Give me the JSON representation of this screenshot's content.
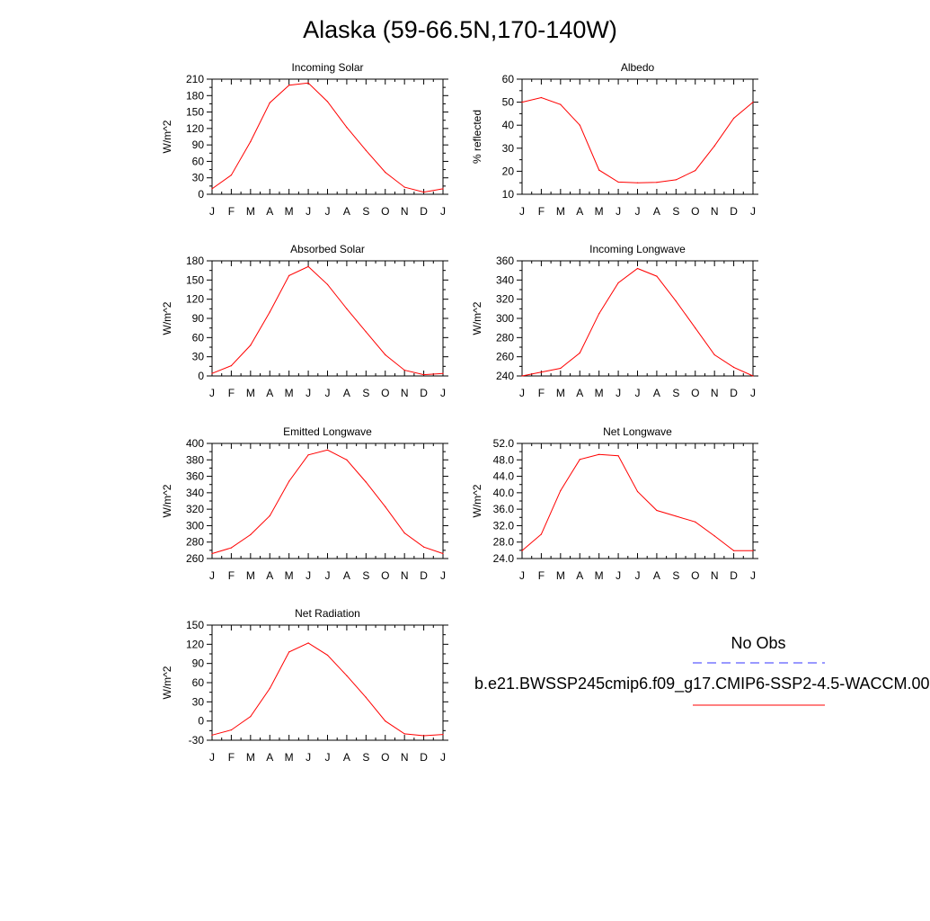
{
  "title": "Alaska (59-66.5N,170-140W)",
  "legend": {
    "obs_label": "No Obs",
    "obs_color": "#3333ff",
    "obs_style": "dashed",
    "model_label": "b.e21.BWSSP245cmip6.f09_g17.CMIP6-SSP2-4.5-WACCM.00",
    "model_color": "#ff0000",
    "model_style": "solid"
  },
  "chart_data": [
    {
      "type": "line",
      "title": "Incoming Solar",
      "ylabel": "W/m^2",
      "x": [
        "J",
        "F",
        "M",
        "A",
        "M",
        "J",
        "J",
        "A",
        "S",
        "O",
        "N",
        "D",
        "J"
      ],
      "ylim": [
        0,
        210
      ],
      "yticks": [
        0,
        30,
        60,
        90,
        120,
        150,
        180,
        210
      ],
      "ytick_labels": [
        "0",
        "30",
        "60",
        "90",
        "120",
        "150",
        "180",
        "210"
      ],
      "series": [
        {
          "values": [
            10,
            35,
            96,
            167,
            199,
            203,
            169,
            122,
            80,
            40,
            13,
            4,
            10
          ]
        }
      ]
    },
    {
      "type": "line",
      "title": "Albedo",
      "ylabel": "% reflected",
      "x": [
        "J",
        "F",
        "M",
        "A",
        "M",
        "J",
        "J",
        "A",
        "S",
        "O",
        "N",
        "D",
        "J"
      ],
      "ylim": [
        10,
        60
      ],
      "yticks": [
        10,
        20,
        30,
        40,
        50,
        60
      ],
      "ytick_labels": [
        "10",
        "20",
        "30",
        "40",
        "50",
        "60"
      ],
      "series": [
        {
          "values": [
            50,
            52,
            49,
            40,
            20.5,
            15.3,
            15,
            15.2,
            16.3,
            20.3,
            31,
            43,
            50
          ]
        }
      ]
    },
    {
      "type": "line",
      "title": "Absorbed Solar",
      "ylabel": "W/m^2",
      "x": [
        "J",
        "F",
        "M",
        "A",
        "M",
        "J",
        "J",
        "A",
        "S",
        "O",
        "N",
        "D",
        "J"
      ],
      "ylim": [
        0,
        180
      ],
      "yticks": [
        0,
        30,
        60,
        90,
        120,
        150,
        180
      ],
      "ytick_labels": [
        "0",
        "30",
        "60",
        "90",
        "120",
        "150",
        "180"
      ],
      "series": [
        {
          "values": [
            4,
            16,
            48,
            100,
            157,
            171,
            143,
            105,
            69,
            33,
            9,
            2,
            4
          ]
        }
      ]
    },
    {
      "type": "line",
      "title": "Incoming Longwave",
      "ylabel": "W/m^2",
      "x": [
        "J",
        "F",
        "M",
        "A",
        "M",
        "J",
        "J",
        "A",
        "S",
        "O",
        "N",
        "D",
        "J"
      ],
      "ylim": [
        240,
        360
      ],
      "yticks": [
        240,
        260,
        280,
        300,
        320,
        340,
        360
      ],
      "ytick_labels": [
        "240",
        "260",
        "280",
        "300",
        "320",
        "340",
        "360"
      ],
      "series": [
        {
          "values": [
            240,
            244,
            248,
            264,
            305,
            337,
            352,
            344,
            318,
            290,
            262,
            249,
            240
          ]
        }
      ]
    },
    {
      "type": "line",
      "title": "Emitted Longwave",
      "ylabel": "W/m^2",
      "x": [
        "J",
        "F",
        "M",
        "A",
        "M",
        "J",
        "J",
        "A",
        "S",
        "O",
        "N",
        "D",
        "J"
      ],
      "ylim": [
        260,
        400
      ],
      "yticks": [
        260,
        280,
        300,
        320,
        340,
        360,
        380,
        400
      ],
      "ytick_labels": [
        "260",
        "280",
        "300",
        "320",
        "340",
        "360",
        "380",
        "400"
      ],
      "series": [
        {
          "values": [
            266,
            273,
            289,
            312,
            354,
            386,
            392,
            380,
            353,
            323,
            291,
            274,
            266
          ]
        }
      ]
    },
    {
      "type": "line",
      "title": "Net Longwave",
      "ylabel": "W/m^2",
      "x": [
        "J",
        "F",
        "M",
        "A",
        "M",
        "J",
        "J",
        "A",
        "S",
        "O",
        "N",
        "D",
        "J"
      ],
      "ylim": [
        24,
        52
      ],
      "yticks": [
        24,
        28,
        32,
        36,
        40,
        44,
        48,
        52
      ],
      "ytick_labels": [
        "24.0",
        "28.0",
        "32.0",
        "36.0",
        "40.0",
        "44.0",
        "48.0",
        "52.0"
      ],
      "series": [
        {
          "values": [
            25.9,
            29.9,
            40.5,
            48.1,
            49.3,
            49,
            40.3,
            35.7,
            34.3,
            32.9,
            29.5,
            25.9,
            25.9
          ]
        }
      ]
    },
    {
      "type": "line",
      "title": "Net Radiation",
      "ylabel": "W/m^2",
      "x": [
        "J",
        "F",
        "M",
        "A",
        "M",
        "J",
        "J",
        "A",
        "S",
        "O",
        "N",
        "D",
        "J"
      ],
      "ylim": [
        -30,
        150
      ],
      "yticks": [
        -30,
        0,
        30,
        60,
        90,
        120,
        150
      ],
      "ytick_labels": [
        "-30",
        "0",
        "30",
        "60",
        "90",
        "120",
        "150"
      ],
      "series": [
        {
          "values": [
            -22,
            -14,
            7,
            51,
            108,
            122,
            103,
            71,
            37,
            0,
            -20,
            -23,
            -21
          ]
        }
      ]
    }
  ]
}
